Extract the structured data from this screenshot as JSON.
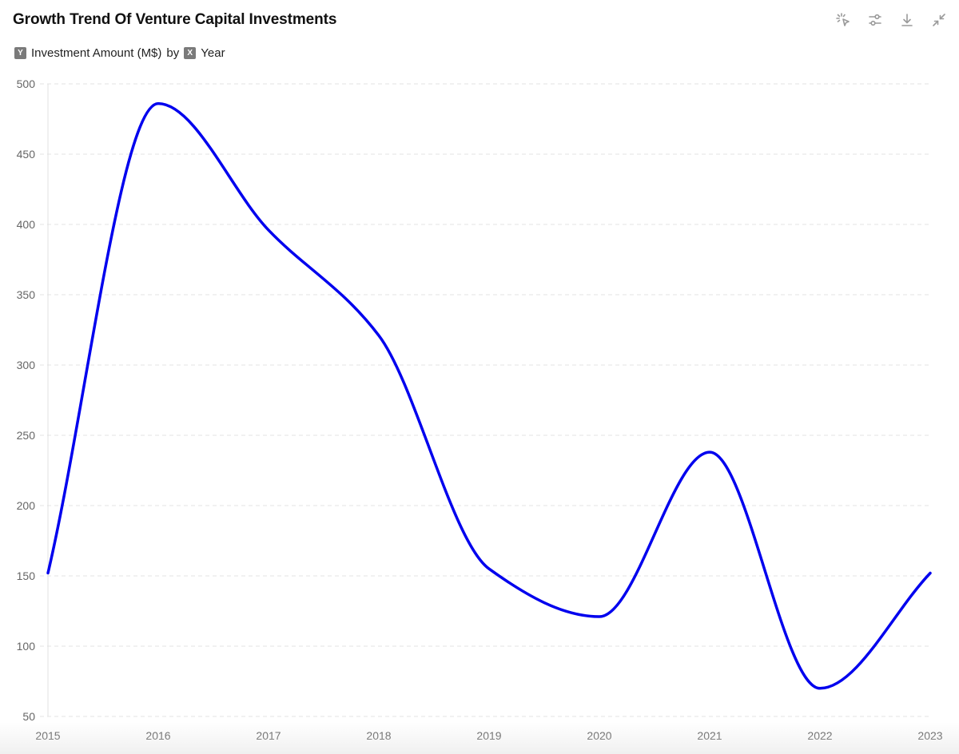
{
  "header": {
    "title": "Growth Trend Of Venture Capital Investments",
    "y_badge": "Y",
    "y_label": "Investment Amount (M$)",
    "by_text": "by",
    "x_badge": "X",
    "x_label": "Year"
  },
  "toolbar": {
    "icons": [
      "select-pointer-icon",
      "filter-sliders-icon",
      "download-icon",
      "collapse-icon"
    ]
  },
  "colors": {
    "line": "#0000ee",
    "grid": "#e3e3e3",
    "axis_text": "#666666"
  },
  "chart_data": {
    "type": "line",
    "title": "Growth Trend Of Venture Capital Investments",
    "xlabel": "Year",
    "ylabel": "Investment Amount (M$)",
    "categories": [
      "2015",
      "2016",
      "2017",
      "2018",
      "2019",
      "2020",
      "2021",
      "2022",
      "2023"
    ],
    "series": [
      {
        "name": "Investment Amount (M$)",
        "values": [
          152,
          486,
          396,
          321,
          155,
          121,
          238,
          70,
          152
        ]
      }
    ],
    "ylim": [
      50,
      500
    ],
    "yticks": [
      50,
      100,
      150,
      200,
      250,
      300,
      350,
      400,
      450,
      500
    ],
    "grid": true,
    "smooth": true,
    "legend": "none"
  }
}
